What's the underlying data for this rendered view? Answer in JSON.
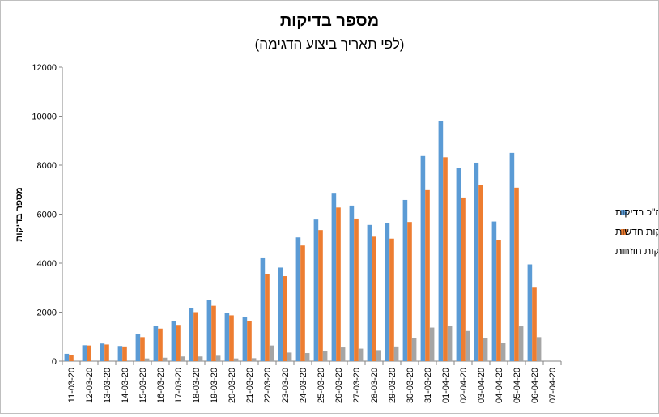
{
  "chart_data": {
    "type": "bar",
    "title": "מספר בדיקות",
    "subtitle": "(לפי תאריך ביצוע הדגימה)",
    "xlabel": "",
    "ylabel": "מספר בדיקות",
    "ylim": [
      0,
      12000
    ],
    "yticks": [
      0,
      2000,
      4000,
      6000,
      8000,
      10000,
      12000
    ],
    "grid": false,
    "legend_position": "right",
    "categories": [
      "11-03-20",
      "12-03-20",
      "13-03-20",
      "14-03-20",
      "15-03-20",
      "16-03-20",
      "17-03-20",
      "18-03-20",
      "19-03-20",
      "20-03-20",
      "21-03-20",
      "22-03-20",
      "23-03-20",
      "24-03-20",
      "25-03-20",
      "26-03-20",
      "27-03-20",
      "28-03-20",
      "29-03-20",
      "30-03-20",
      "31-03-20",
      "01-04-20",
      "02-04-20",
      "03-04-20",
      "04-04-20",
      "05-04-20",
      "06-04-20",
      "07-04-20"
    ],
    "series": [
      {
        "name": "סה\"כ בדיקות",
        "color": "#5b9bd5",
        "values": [
          300,
          650,
          720,
          620,
          1120,
          1450,
          1650,
          2180,
          2480,
          1980,
          1790,
          4200,
          3820,
          5050,
          5780,
          6870,
          6350,
          5560,
          5620,
          6580,
          8370,
          9790,
          7900,
          8100,
          5700,
          8500,
          3950,
          0
        ]
      },
      {
        "name": "בדיקות חדשות",
        "color": "#ed7d31",
        "values": [
          260,
          640,
          680,
          600,
          980,
          1330,
          1480,
          2000,
          2260,
          1870,
          1650,
          3560,
          3470,
          4720,
          5350,
          6270,
          5820,
          5080,
          5000,
          5680,
          6980,
          8320,
          6680,
          7180,
          4950,
          7080,
          3000,
          0
        ]
      },
      {
        "name": "בדיקות חוזרות",
        "color": "#a5a5a5",
        "values": [
          0,
          0,
          0,
          0,
          110,
          140,
          190,
          190,
          220,
          110,
          120,
          640,
          350,
          330,
          420,
          560,
          510,
          450,
          600,
          930,
          1370,
          1440,
          1230,
          930,
          750,
          1420,
          980,
          0
        ]
      }
    ]
  }
}
